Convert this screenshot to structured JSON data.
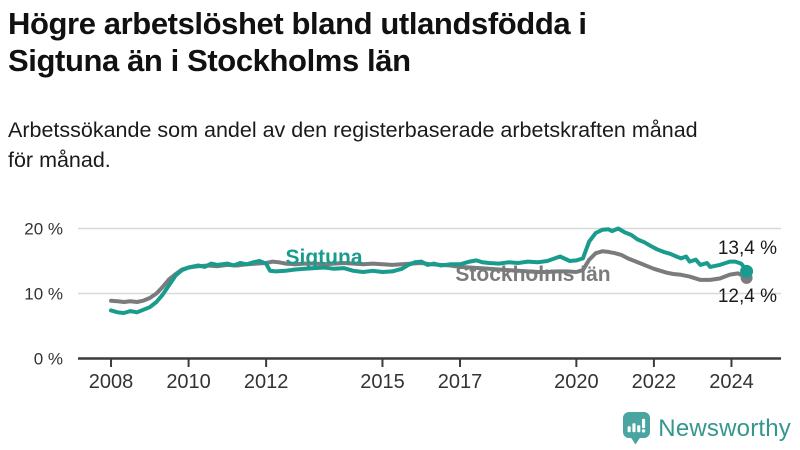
{
  "header": {
    "title_line1": "Högre arbetslöshet bland utlandsfödda i",
    "title_line2": "Sigtuna än i Stockholms län",
    "subtitle_line1": "Arbetssökande som andel av den registerbaserade arbetskraften månad",
    "subtitle_line2": "för månad."
  },
  "chart_data": {
    "type": "line",
    "unit": "percent of registered labour force",
    "x_axis": {
      "range": [
        2007.2,
        2025.2
      ],
      "ticks": [
        2008,
        2010,
        2012,
        2015,
        2017,
        2020,
        2022,
        2024
      ]
    },
    "y_axis": {
      "range": [
        0,
        22
      ],
      "ticks": [
        0,
        10,
        20
      ],
      "tick_labels": [
        "0 %",
        "10 %",
        "20 %"
      ],
      "gridlines": [
        10,
        20
      ]
    },
    "legend_position": "inline-labels",
    "series": [
      {
        "name": "Sigtuna",
        "color": "#199c8d",
        "end_label": "13,4 %",
        "end_value": 13.4,
        "points": [
          [
            2008.0,
            7.4
          ],
          [
            2008.17,
            7.1
          ],
          [
            2008.33,
            7.0
          ],
          [
            2008.5,
            7.3
          ],
          [
            2008.67,
            7.1
          ],
          [
            2008.83,
            7.5
          ],
          [
            2009.0,
            7.9
          ],
          [
            2009.17,
            8.7
          ],
          [
            2009.33,
            9.8
          ],
          [
            2009.5,
            11.3
          ],
          [
            2009.67,
            12.8
          ],
          [
            2009.83,
            13.6
          ],
          [
            2010.0,
            14.0
          ],
          [
            2010.25,
            14.3
          ],
          [
            2010.42,
            14.1
          ],
          [
            2010.58,
            14.6
          ],
          [
            2010.75,
            14.4
          ],
          [
            2011.0,
            14.6
          ],
          [
            2011.17,
            14.3
          ],
          [
            2011.33,
            14.7
          ],
          [
            2011.5,
            14.5
          ],
          [
            2011.67,
            14.8
          ],
          [
            2011.83,
            15.0
          ],
          [
            2012.0,
            14.6
          ],
          [
            2012.1,
            13.5
          ],
          [
            2012.25,
            13.4
          ],
          [
            2012.5,
            13.5
          ],
          [
            2012.75,
            13.7
          ],
          [
            2013.0,
            13.8
          ],
          [
            2013.25,
            13.9
          ],
          [
            2013.5,
            14.0
          ],
          [
            2013.75,
            13.8
          ],
          [
            2014.0,
            13.9
          ],
          [
            2014.25,
            13.5
          ],
          [
            2014.5,
            13.3
          ],
          [
            2014.75,
            13.5
          ],
          [
            2015.0,
            13.3
          ],
          [
            2015.25,
            13.4
          ],
          [
            2015.5,
            13.8
          ],
          [
            2015.67,
            14.4
          ],
          [
            2015.83,
            14.8
          ],
          [
            2016.0,
            14.9
          ],
          [
            2016.17,
            14.4
          ],
          [
            2016.33,
            14.6
          ],
          [
            2016.5,
            14.3
          ],
          [
            2016.75,
            14.5
          ],
          [
            2017.0,
            14.5
          ],
          [
            2017.25,
            14.9
          ],
          [
            2017.42,
            15.1
          ],
          [
            2017.58,
            14.8
          ],
          [
            2017.75,
            14.7
          ],
          [
            2018.0,
            14.6
          ],
          [
            2018.25,
            14.8
          ],
          [
            2018.5,
            14.7
          ],
          [
            2018.75,
            14.9
          ],
          [
            2019.0,
            14.8
          ],
          [
            2019.25,
            15.0
          ],
          [
            2019.58,
            15.7
          ],
          [
            2019.83,
            15.0
          ],
          [
            2020.0,
            15.1
          ],
          [
            2020.17,
            15.4
          ],
          [
            2020.33,
            18.0
          ],
          [
            2020.5,
            19.3
          ],
          [
            2020.67,
            19.8
          ],
          [
            2020.83,
            19.9
          ],
          [
            2020.92,
            19.6
          ],
          [
            2021.08,
            20.0
          ],
          [
            2021.25,
            19.4
          ],
          [
            2021.42,
            19.0
          ],
          [
            2021.58,
            18.3
          ],
          [
            2021.75,
            17.9
          ],
          [
            2021.92,
            17.3
          ],
          [
            2022.08,
            16.8
          ],
          [
            2022.25,
            16.4
          ],
          [
            2022.42,
            16.1
          ],
          [
            2022.58,
            15.7
          ],
          [
            2022.7,
            15.4
          ],
          [
            2022.83,
            15.7
          ],
          [
            2022.92,
            14.9
          ],
          [
            2023.08,
            15.2
          ],
          [
            2023.2,
            14.4
          ],
          [
            2023.37,
            14.7
          ],
          [
            2023.45,
            14.1
          ],
          [
            2023.7,
            14.4
          ],
          [
            2023.96,
            14.9
          ],
          [
            2024.1,
            14.9
          ],
          [
            2024.25,
            14.6
          ],
          [
            2024.33,
            14.0
          ],
          [
            2024.39,
            13.4
          ]
        ]
      },
      {
        "name": "Stockholms län",
        "color": "#7a7b7d",
        "end_label": "12,4 %",
        "end_value": 12.4,
        "points": [
          [
            2008.0,
            8.9
          ],
          [
            2008.17,
            8.8
          ],
          [
            2008.33,
            8.7
          ],
          [
            2008.5,
            8.8
          ],
          [
            2008.67,
            8.7
          ],
          [
            2008.83,
            8.9
          ],
          [
            2009.0,
            9.3
          ],
          [
            2009.17,
            10.0
          ],
          [
            2009.33,
            11.0
          ],
          [
            2009.5,
            12.2
          ],
          [
            2009.67,
            13.0
          ],
          [
            2009.83,
            13.7
          ],
          [
            2010.0,
            14.0
          ],
          [
            2010.25,
            14.2
          ],
          [
            2010.5,
            14.3
          ],
          [
            2010.75,
            14.2
          ],
          [
            2011.0,
            14.4
          ],
          [
            2011.25,
            14.3
          ],
          [
            2011.5,
            14.5
          ],
          [
            2011.75,
            14.6
          ],
          [
            2012.0,
            14.7
          ],
          [
            2012.17,
            14.9
          ],
          [
            2012.33,
            14.8
          ],
          [
            2012.5,
            14.6
          ],
          [
            2012.75,
            14.5
          ],
          [
            2013.0,
            14.6
          ],
          [
            2013.25,
            14.6
          ],
          [
            2013.5,
            14.5
          ],
          [
            2013.75,
            14.6
          ],
          [
            2014.0,
            14.7
          ],
          [
            2014.25,
            14.6
          ],
          [
            2014.5,
            14.5
          ],
          [
            2014.75,
            14.6
          ],
          [
            2015.0,
            14.5
          ],
          [
            2015.25,
            14.4
          ],
          [
            2015.5,
            14.5
          ],
          [
            2015.75,
            14.6
          ],
          [
            2016.0,
            14.7
          ],
          [
            2016.25,
            14.5
          ],
          [
            2016.5,
            14.4
          ],
          [
            2016.75,
            14.3
          ],
          [
            2017.0,
            14.1
          ],
          [
            2017.25,
            14.0
          ],
          [
            2017.5,
            13.9
          ],
          [
            2017.75,
            13.8
          ],
          [
            2018.0,
            13.7
          ],
          [
            2018.25,
            13.6
          ],
          [
            2018.5,
            13.5
          ],
          [
            2018.75,
            13.4
          ],
          [
            2019.0,
            13.3
          ],
          [
            2019.25,
            13.3
          ],
          [
            2019.5,
            13.4
          ],
          [
            2019.75,
            13.4
          ],
          [
            2020.0,
            13.3
          ],
          [
            2020.17,
            13.6
          ],
          [
            2020.33,
            15.2
          ],
          [
            2020.5,
            16.2
          ],
          [
            2020.67,
            16.5
          ],
          [
            2020.83,
            16.4
          ],
          [
            2021.0,
            16.2
          ],
          [
            2021.17,
            15.9
          ],
          [
            2021.33,
            15.4
          ],
          [
            2021.5,
            15.0
          ],
          [
            2021.67,
            14.6
          ],
          [
            2021.83,
            14.2
          ],
          [
            2022.0,
            13.8
          ],
          [
            2022.17,
            13.5
          ],
          [
            2022.33,
            13.2
          ],
          [
            2022.5,
            13.0
          ],
          [
            2022.67,
            12.9
          ],
          [
            2022.92,
            12.6
          ],
          [
            2023.2,
            12.1
          ],
          [
            2023.45,
            12.1
          ],
          [
            2023.7,
            12.3
          ],
          [
            2023.96,
            12.9
          ],
          [
            2024.17,
            13.1
          ],
          [
            2024.3,
            12.7
          ],
          [
            2024.39,
            12.4
          ]
        ]
      }
    ]
  },
  "branding": {
    "name": "Newsworthy"
  },
  "colors": {
    "sigtuna": "#199c8d",
    "stockholm": "#7a7b7d",
    "grid": "#d8d8d8",
    "axis": "#3c3c3c",
    "tick_text": "#333333",
    "end_label_text": "#1a1a1a",
    "brand_icon": "#4aa5a0",
    "brand_text": "#35968e"
  }
}
